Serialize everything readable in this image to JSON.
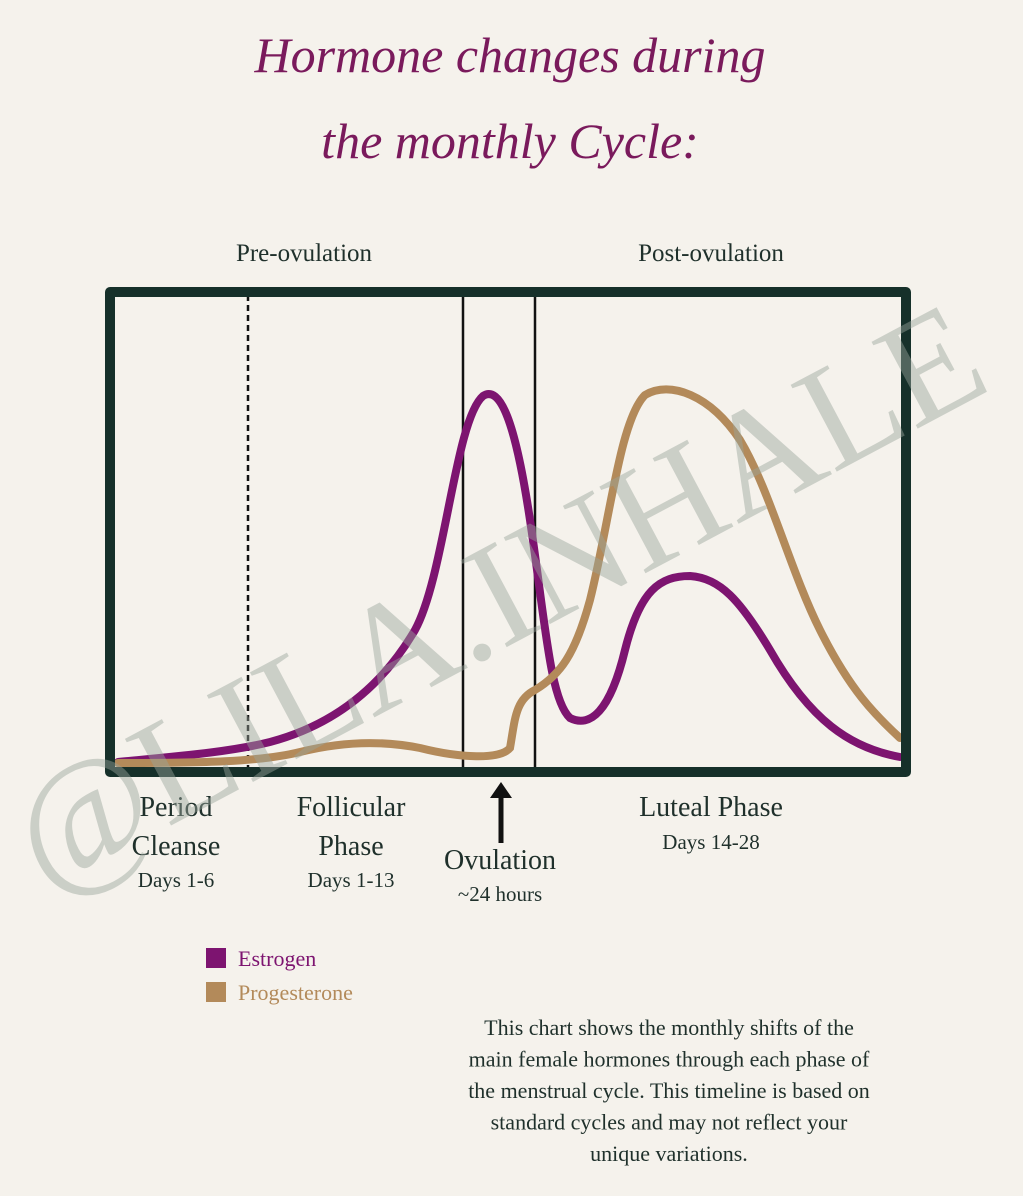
{
  "header": {
    "title_lines": [
      "Hormone changes during",
      "the monthly Cycle:"
    ]
  },
  "sections": [
    "Pre-ovulation",
    "Post-ovulation"
  ],
  "phases": [
    {
      "name_lines": [
        "Period",
        "Cleanse"
      ],
      "days": "Days 1-6"
    },
    {
      "name_lines": [
        "Follicular",
        "Phase"
      ],
      "days": "Days 1-13"
    },
    {
      "name_lines": [
        "Ovulation"
      ],
      "days": "~24 hours"
    },
    {
      "name_lines": [
        "Luteal Phase"
      ],
      "days": "Days 14-28"
    }
  ],
  "legend": [
    {
      "name": "Estrogen",
      "color": "#7d1470"
    },
    {
      "name": "Progesterone",
      "color": "#b38a5a"
    }
  ],
  "description_lines": [
    "This chart shows the monthly shifts of the",
    "main female hormones through each phase of",
    "the menstrual cycle. This timeline is based on",
    "standard cycles and may not reflect your",
    "unique variations."
  ],
  "watermark": "@LILA.INHALE"
}
